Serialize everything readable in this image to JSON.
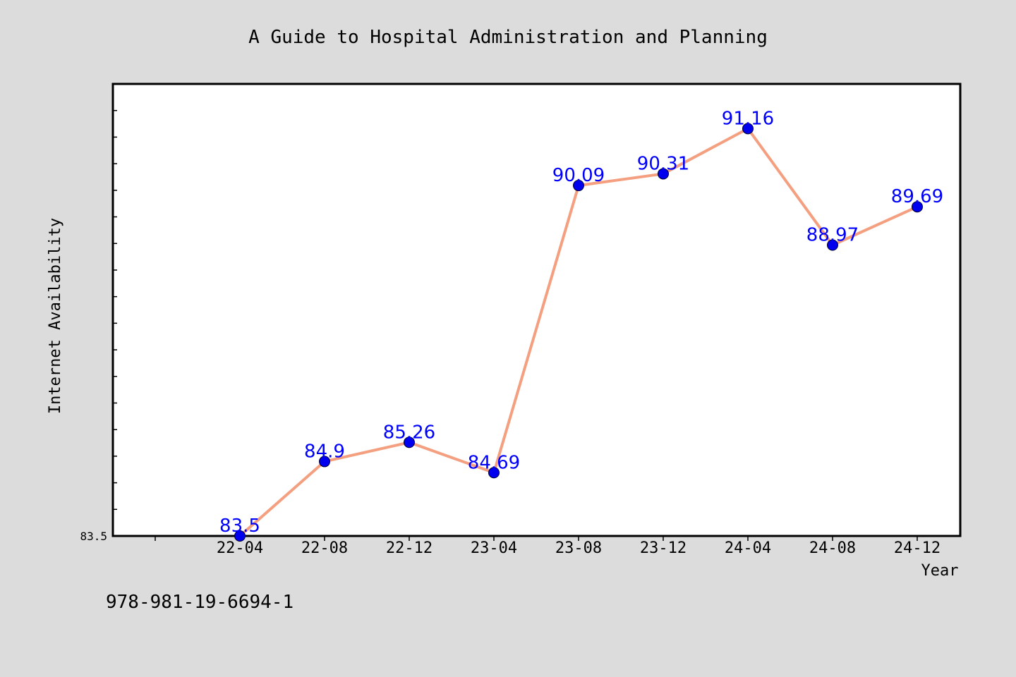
{
  "chart_data": {
    "type": "line",
    "title": "A Guide to Hospital Administration and Planning",
    "xlabel": "Year",
    "ylabel": "Internet Availability",
    "categories": [
      "22-04",
      "22-08",
      "22-12",
      "23-04",
      "23-08",
      "23-12",
      "24-04",
      "24-08",
      "24-12"
    ],
    "values": [
      83.5,
      84.9,
      85.26,
      84.69,
      90.09,
      90.31,
      91.16,
      88.97,
      89.69
    ],
    "data_labels": [
      "83.5",
      "84.9",
      "85.26",
      "84.69",
      "90.09",
      "90.31",
      "91.16",
      "88.97",
      "89.69"
    ],
    "ylim": [
      83.5,
      92.0
    ],
    "yticks_labeled": [
      "83.5"
    ],
    "grid": false,
    "legend": "none",
    "colors": {
      "line": "#f4a080",
      "marker": "#0000ee",
      "data_label": "#0000ff",
      "background": "#dcdcdc",
      "plot_background": "#ffffff"
    }
  },
  "footer": {
    "isbn": "978-981-19-6694-1"
  }
}
